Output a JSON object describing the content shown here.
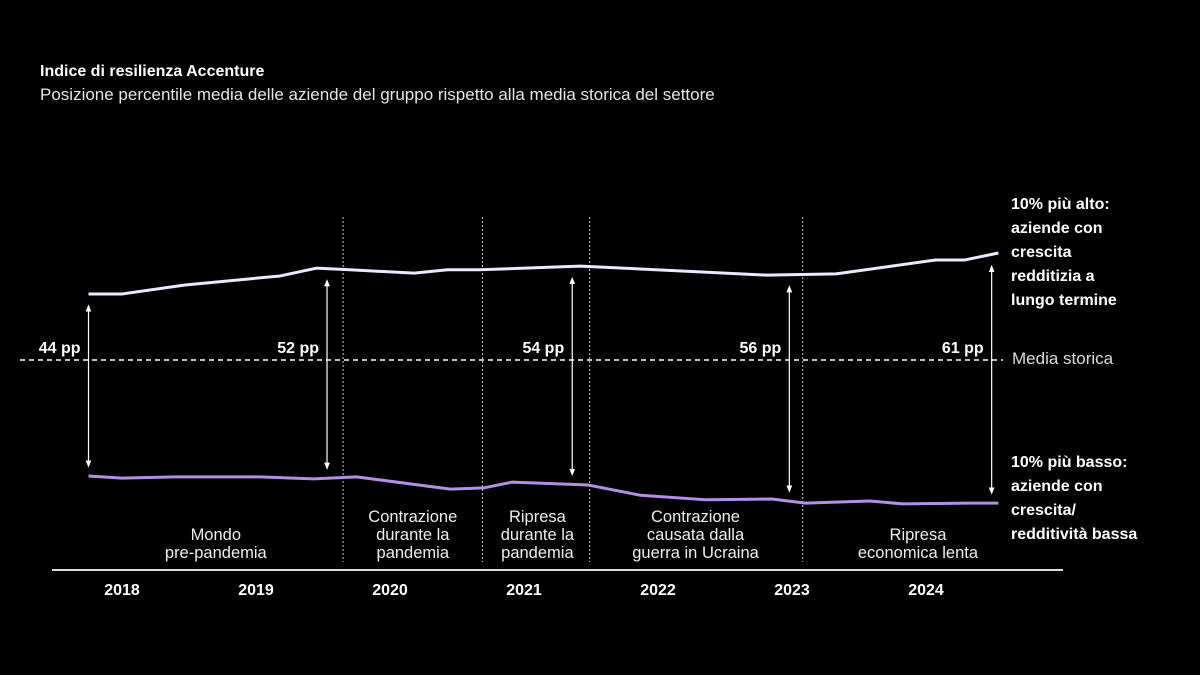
{
  "title": "Indice di resilienza Accenture",
  "subtitle": "Posizione percentile media delle aziende del gruppo rispetto alla media storica del settore",
  "chart_data": {
    "type": "line",
    "title": "Indice di resilienza Accenture",
    "subtitle": "Posizione percentile media delle aziende del gruppo rispetto alla media storica del settore",
    "years": [
      "2018",
      "2019",
      "2020",
      "2021",
      "2022",
      "2023",
      "2024"
    ],
    "baseline_label": "Media storica",
    "series": [
      {
        "name": "10% più alto: aziende con crescita redditizia a lungo termine",
        "color": "#f0e6ff",
        "points": [
          [
            2018.25,
            16.1
          ],
          [
            2018.5,
            16.1
          ],
          [
            2018.97,
            18.3
          ],
          [
            2019.68,
            20.5
          ],
          [
            2019.95,
            22.4
          ],
          [
            2020.2,
            22.0
          ],
          [
            2020.68,
            21.2
          ],
          [
            2020.93,
            22.0
          ],
          [
            2021.17,
            22.0
          ],
          [
            2021.92,
            22.9
          ],
          [
            2022.81,
            21.5
          ],
          [
            2023.31,
            20.7
          ],
          [
            2023.83,
            21.0
          ],
          [
            2024.57,
            24.4
          ],
          [
            2024.79,
            24.4
          ],
          [
            2025.04,
            26.1
          ]
        ]
      },
      {
        "name": "10% più basso: aziende con crescita/ redditività bassa",
        "color": "#b48fe8",
        "points": [
          [
            2018.25,
            -28.3
          ],
          [
            2018.5,
            -28.8
          ],
          [
            2018.9,
            -28.5
          ],
          [
            2019.53,
            -28.5
          ],
          [
            2019.93,
            -29.0
          ],
          [
            2020.25,
            -28.5
          ],
          [
            2020.95,
            -31.5
          ],
          [
            2021.2,
            -31.2
          ],
          [
            2021.41,
            -29.8
          ],
          [
            2021.98,
            -30.5
          ],
          [
            2022.37,
            -33.0
          ],
          [
            2022.86,
            -34.1
          ],
          [
            2023.35,
            -33.9
          ],
          [
            2023.6,
            -34.9
          ],
          [
            2024.08,
            -34.4
          ],
          [
            2024.33,
            -35.1
          ],
          [
            2024.81,
            -34.9
          ],
          [
            2025.04,
            -34.9
          ]
        ]
      }
    ],
    "gaps": [
      {
        "label": "44 pp",
        "x": 2018.25
      },
      {
        "label": "52 pp",
        "x": 2020.03
      },
      {
        "label": "54 pp",
        "x": 2021.86
      },
      {
        "label": "56 pp",
        "x": 2023.48
      },
      {
        "label": "61 pp",
        "x": 2024.99
      }
    ],
    "period_dividers": [
      2020.15,
      2021.19,
      2021.99,
      2023.58
    ],
    "periods": [
      {
        "label": "Mondo\npre-pandemia",
        "x": 2019.2
      },
      {
        "label": "Contrazione\ndurante la\npandemia",
        "x": 2020.67
      },
      {
        "label": "Ripresa\ndurante la\npandemia",
        "x": 2021.6
      },
      {
        "label": "Contrazione\ncausata dalla\nguerra in Ucraina",
        "x": 2022.78
      },
      {
        "label": "Ripresa\neconomica lenta",
        "x": 2024.44
      }
    ]
  },
  "annotations": {
    "top": "10% più alto:\naziende con\ncrescita\nredditizia a\nlungo termine",
    "bottom": "10% più basso:\naziende con\ncrescita/\nredditività bassa",
    "media": "Media storica"
  }
}
